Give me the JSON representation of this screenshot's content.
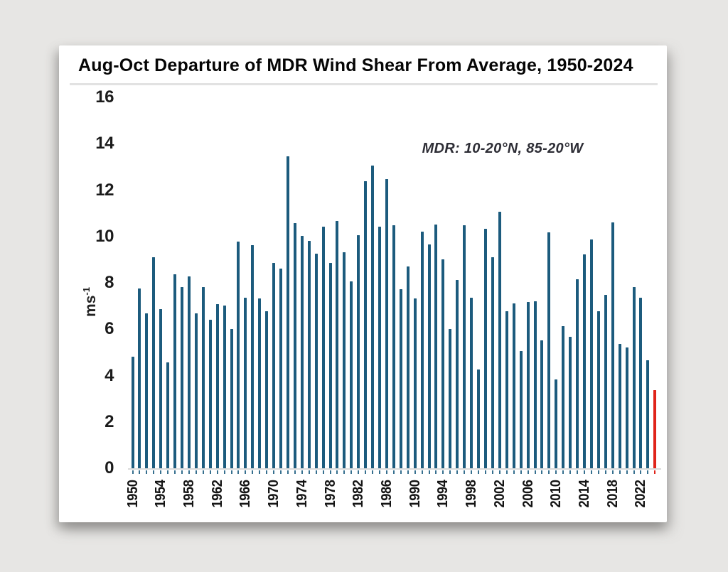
{
  "panel": {
    "title": "Aug-Oct Departure of MDR Wind Shear From Average, 1950-2024"
  },
  "chart_data": {
    "type": "bar",
    "title": "Aug-Oct Departure of MDR Wind Shear From Average, 1950-2024",
    "annotation": "MDR: 10-20°N, 85-20°W",
    "ylabel_base": "ms",
    "ylabel_exp": "-1",
    "ylim": [
      0,
      16
    ],
    "ytick_labels": [
      16,
      14,
      12,
      10,
      8,
      6,
      4,
      2,
      0
    ],
    "xtick_labels": [
      1950,
      1954,
      1958,
      1962,
      1966,
      1970,
      1974,
      1978,
      1982,
      1986,
      1990,
      1994,
      1998,
      2002,
      2006,
      2010,
      2014,
      2018,
      2022
    ],
    "xtick_every": 4,
    "start_year": 1950,
    "end_year": 2024,
    "highlight_year": 2024,
    "bar_color": "#1c5b7d",
    "highlight_color": "#e0241a",
    "tick_color": "#37708f",
    "grid": "off",
    "legend": "none",
    "years": [
      1950,
      1951,
      1952,
      1953,
      1954,
      1955,
      1956,
      1957,
      1958,
      1959,
      1960,
      1961,
      1962,
      1963,
      1964,
      1965,
      1966,
      1967,
      1968,
      1969,
      1970,
      1971,
      1972,
      1973,
      1974,
      1975,
      1976,
      1977,
      1978,
      1979,
      1980,
      1981,
      1982,
      1983,
      1984,
      1985,
      1986,
      1987,
      1988,
      1989,
      1990,
      1991,
      1992,
      1993,
      1994,
      1995,
      1996,
      1997,
      1998,
      1999,
      2000,
      2001,
      2002,
      2003,
      2004,
      2005,
      2006,
      2007,
      2008,
      2009,
      2010,
      2011,
      2012,
      2013,
      2014,
      2015,
      2016,
      2017,
      2018,
      2019,
      2020,
      2021,
      2022,
      2023,
      2024
    ],
    "values": [
      4.85,
      7.8,
      6.7,
      9.15,
      6.9,
      4.6,
      8.4,
      7.85,
      8.3,
      6.7,
      7.85,
      6.45,
      7.1,
      7.05,
      6.05,
      9.8,
      7.4,
      9.65,
      7.35,
      6.8,
      8.9,
      8.65,
      13.5,
      10.6,
      10.05,
      9.85,
      9.3,
      10.45,
      8.9,
      10.7,
      9.35,
      8.1,
      10.1,
      12.4,
      13.1,
      10.45,
      12.5,
      10.5,
      7.75,
      8.75,
      7.35,
      10.25,
      9.7,
      10.55,
      9.05,
      6.05,
      8.15,
      10.5,
      7.4,
      4.3,
      10.35,
      9.15,
      11.1,
      6.8,
      7.15,
      5.1,
      7.2,
      7.25,
      5.55,
      10.2,
      3.85,
      6.15,
      5.7,
      8.2,
      9.25,
      9.9,
      6.8,
      7.5,
      10.65,
      5.4,
      5.25,
      7.85,
      7.4,
      4.7,
      3.4
    ]
  }
}
